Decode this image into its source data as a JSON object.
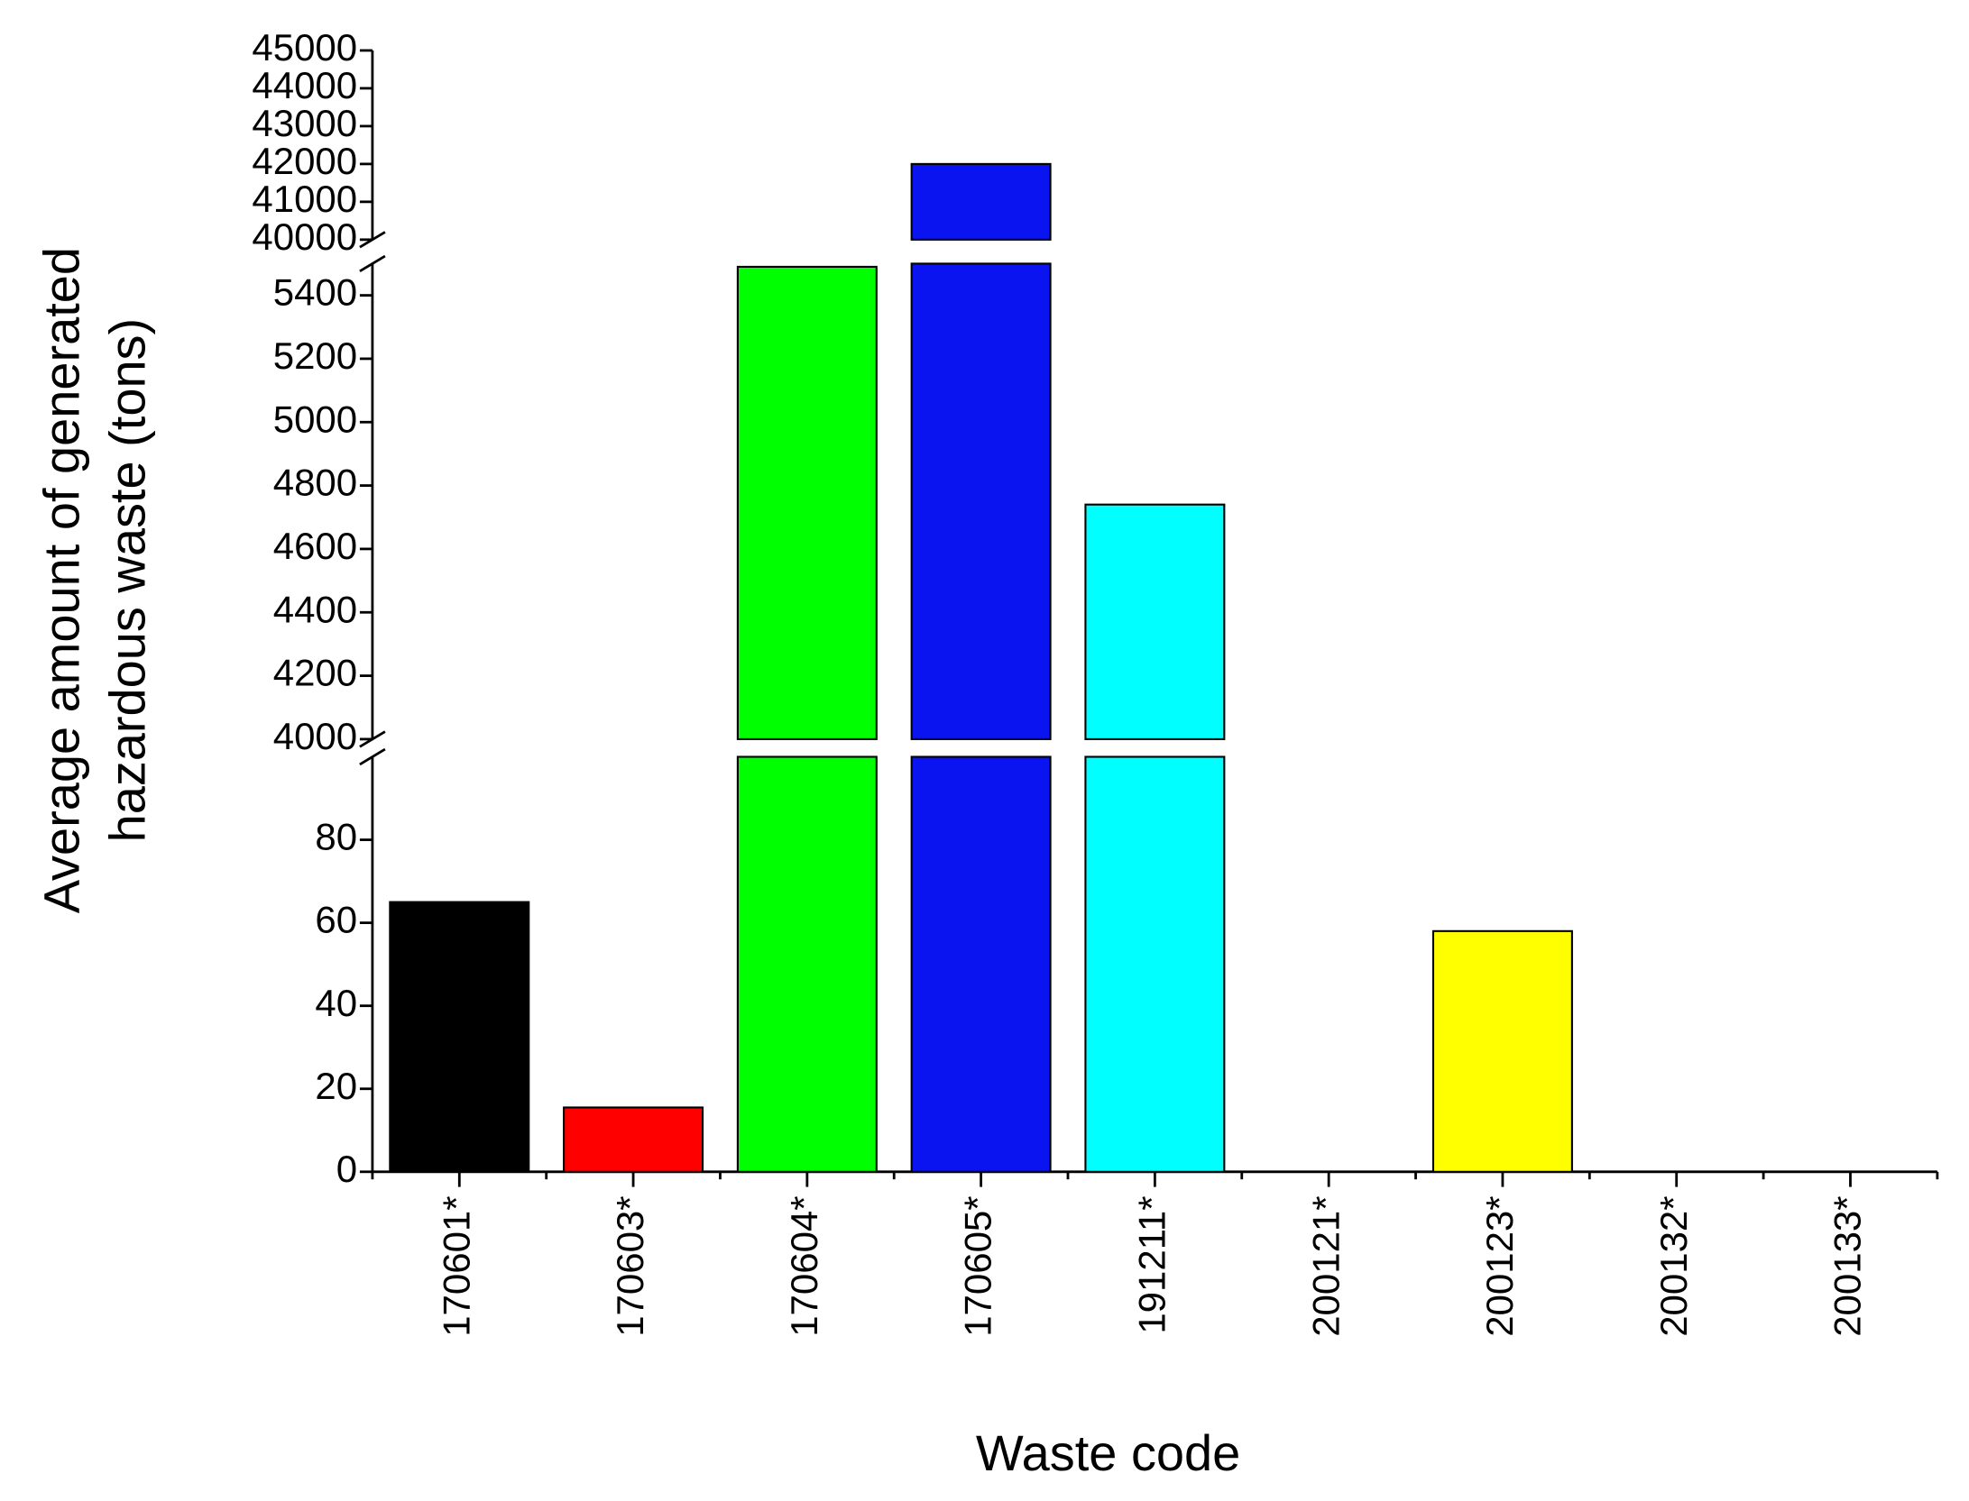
{
  "chart_data": {
    "type": "bar",
    "xlabel": "Waste code",
    "ylabel_lines": [
      "Average amount of generated",
      "hazardous waste (tons)"
    ],
    "categories": [
      "170601*",
      "170603*",
      "170604*",
      "170605*",
      "191211*",
      "200121*",
      "200123*",
      "200132*",
      "200133*"
    ],
    "values": [
      65,
      15.5,
      5490,
      42000,
      4740,
      0,
      58,
      0,
      0
    ],
    "colors": [
      "#000000",
      "#ff0000",
      "#00ff00",
      "#0a14f0",
      "#00ffff",
      "#ffffff",
      "#ffff00",
      "#ffffff",
      "#ffffff"
    ],
    "y_segments": [
      {
        "ylim": [
          0,
          100
        ],
        "yticks": [
          0,
          20,
          40,
          60,
          80
        ]
      },
      {
        "ylim": [
          4000,
          5500
        ],
        "yticks": [
          4000,
          4200,
          4400,
          4600,
          4800,
          5000,
          5200,
          5400
        ]
      },
      {
        "ylim": [
          40000,
          45000
        ],
        "yticks": [
          40000,
          41000,
          42000,
          43000,
          44000,
          45000
        ]
      }
    ]
  }
}
